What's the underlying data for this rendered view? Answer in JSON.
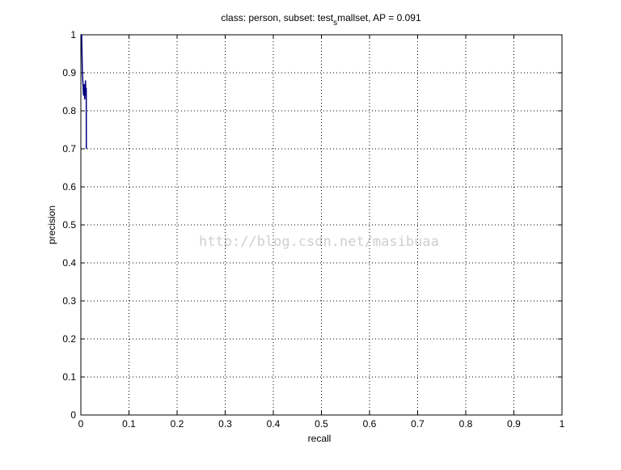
{
  "watermark": "http://blog.csdn.net/masibuaa",
  "chart_data": {
    "type": "line",
    "title": {
      "before": "class: person, subset: test",
      "subscript": "s",
      "after": "mallset, AP = 0.091"
    },
    "xlabel": "recall",
    "ylabel": "precision",
    "xlim": [
      0,
      1
    ],
    "ylim": [
      0,
      1
    ],
    "grid": true,
    "xticks": [
      0,
      0.1,
      0.2,
      0.3,
      0.4,
      0.5,
      0.6,
      0.7,
      0.8,
      0.9,
      1
    ],
    "xtick_labels": [
      "0",
      "0.1",
      "0.2",
      "0.3",
      "0.4",
      "0.5",
      "0.6",
      "0.7",
      "0.8",
      "0.9",
      "1"
    ],
    "yticks": [
      0,
      0.1,
      0.2,
      0.3,
      0.4,
      0.5,
      0.6,
      0.7,
      0.8,
      0.9,
      1
    ],
    "ytick_labels": [
      "0",
      "0.1",
      "0.2",
      "0.3",
      "0.4",
      "0.5",
      "0.6",
      "0.7",
      "0.8",
      "0.9",
      "1"
    ],
    "series": [
      {
        "color": "#000080",
        "x": [
          0.0,
          0.0008,
          0.0016,
          0.0032,
          0.0048,
          0.0056,
          0.0064,
          0.0072,
          0.008,
          0.0088,
          0.0096,
          0.0104,
          0.0112,
          0.0114
        ],
        "y": [
          1.0,
          1.0,
          1.0,
          0.9,
          0.86,
          0.84,
          0.86,
          0.87,
          0.83,
          0.85,
          0.88,
          0.84,
          0.86,
          0.7
        ]
      }
    ]
  }
}
